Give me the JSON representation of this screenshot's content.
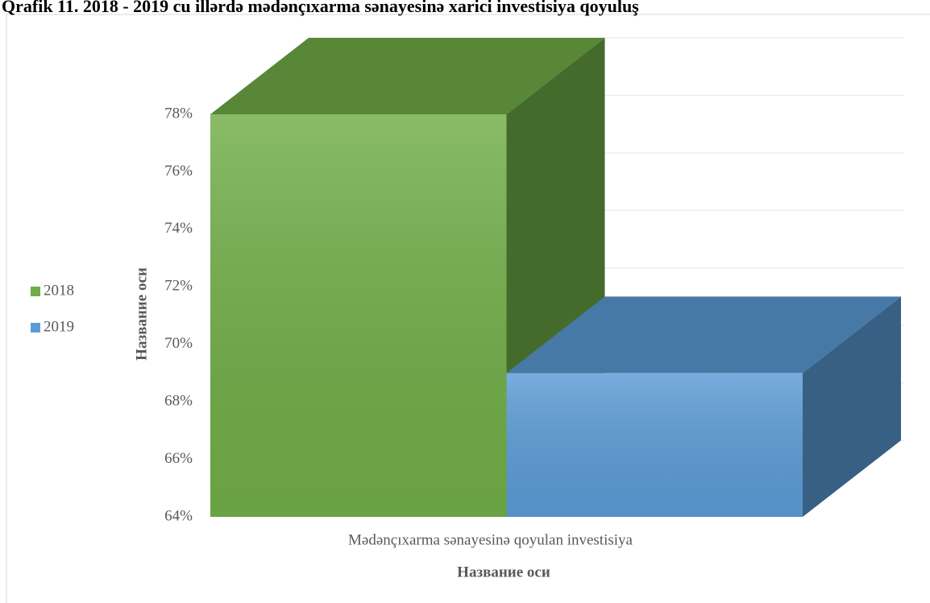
{
  "chart_data": {
    "type": "bar3d",
    "title": "Qrafik 11. 2018 - 2019 cu illərdə mədənçıxarma sənayesinə xarici investisiya qoyuluş",
    "categories": [
      "Mədənçıxarma sənayesinə qoyulan investisiya"
    ],
    "series": [
      {
        "name": "2018",
        "color": "#70ad47",
        "values": [
          78
        ]
      },
      {
        "name": "2019",
        "color": "#5b9bd5",
        "values": [
          69
        ]
      }
    ],
    "x_label": "Название оси",
    "y_label": "Название оси",
    "ylim": [
      64,
      78
    ],
    "yticks": [
      {
        "value": 64,
        "label": "64%"
      },
      {
        "value": 66,
        "label": "66%"
      },
      {
        "value": 68,
        "label": "68%"
      },
      {
        "value": 70,
        "label": "70%"
      },
      {
        "value": 72,
        "label": "72%"
      },
      {
        "value": 74,
        "label": "74%"
      },
      {
        "value": 76,
        "label": "76%"
      },
      {
        "value": 78,
        "label": "78%"
      }
    ],
    "grid": true,
    "legend": "left"
  }
}
